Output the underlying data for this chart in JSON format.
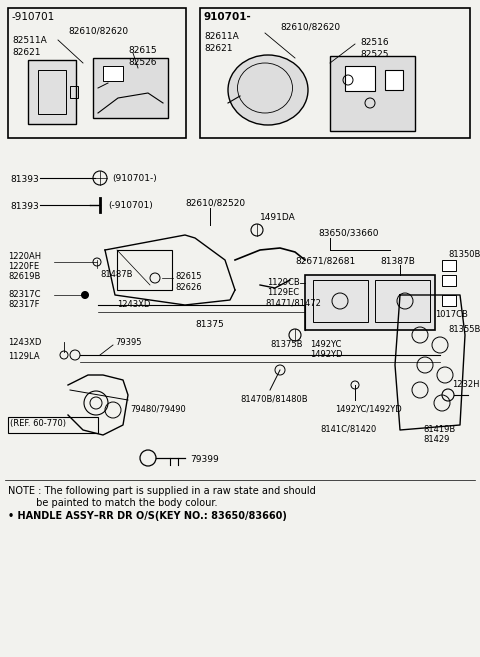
{
  "bg_color": "#f2f2ee",
  "figsize": [
    4.8,
    6.57
  ],
  "dpi": 100,
  "box1_label": "-910701",
  "box1_pn1": "82610/82620",
  "box1_pn2": "82511A",
  "box1_pn3": "82621",
  "box1_pn4": "82615",
  "box1_pn5": "82526",
  "box2_label": "910701-",
  "box2_pn1": "82610/82620",
  "box2_pn2": "82611A",
  "box2_pn3": "82621",
  "box2_pn4": "82516",
  "box2_pn5": "82525",
  "note1": "NOTE : The following part is supplied in a raw state and should",
  "note2": "         be painted to match the body colour.",
  "note3": "• HANDLE ASSY–RR DR O/S(KEY NO.: 83650/83660)"
}
